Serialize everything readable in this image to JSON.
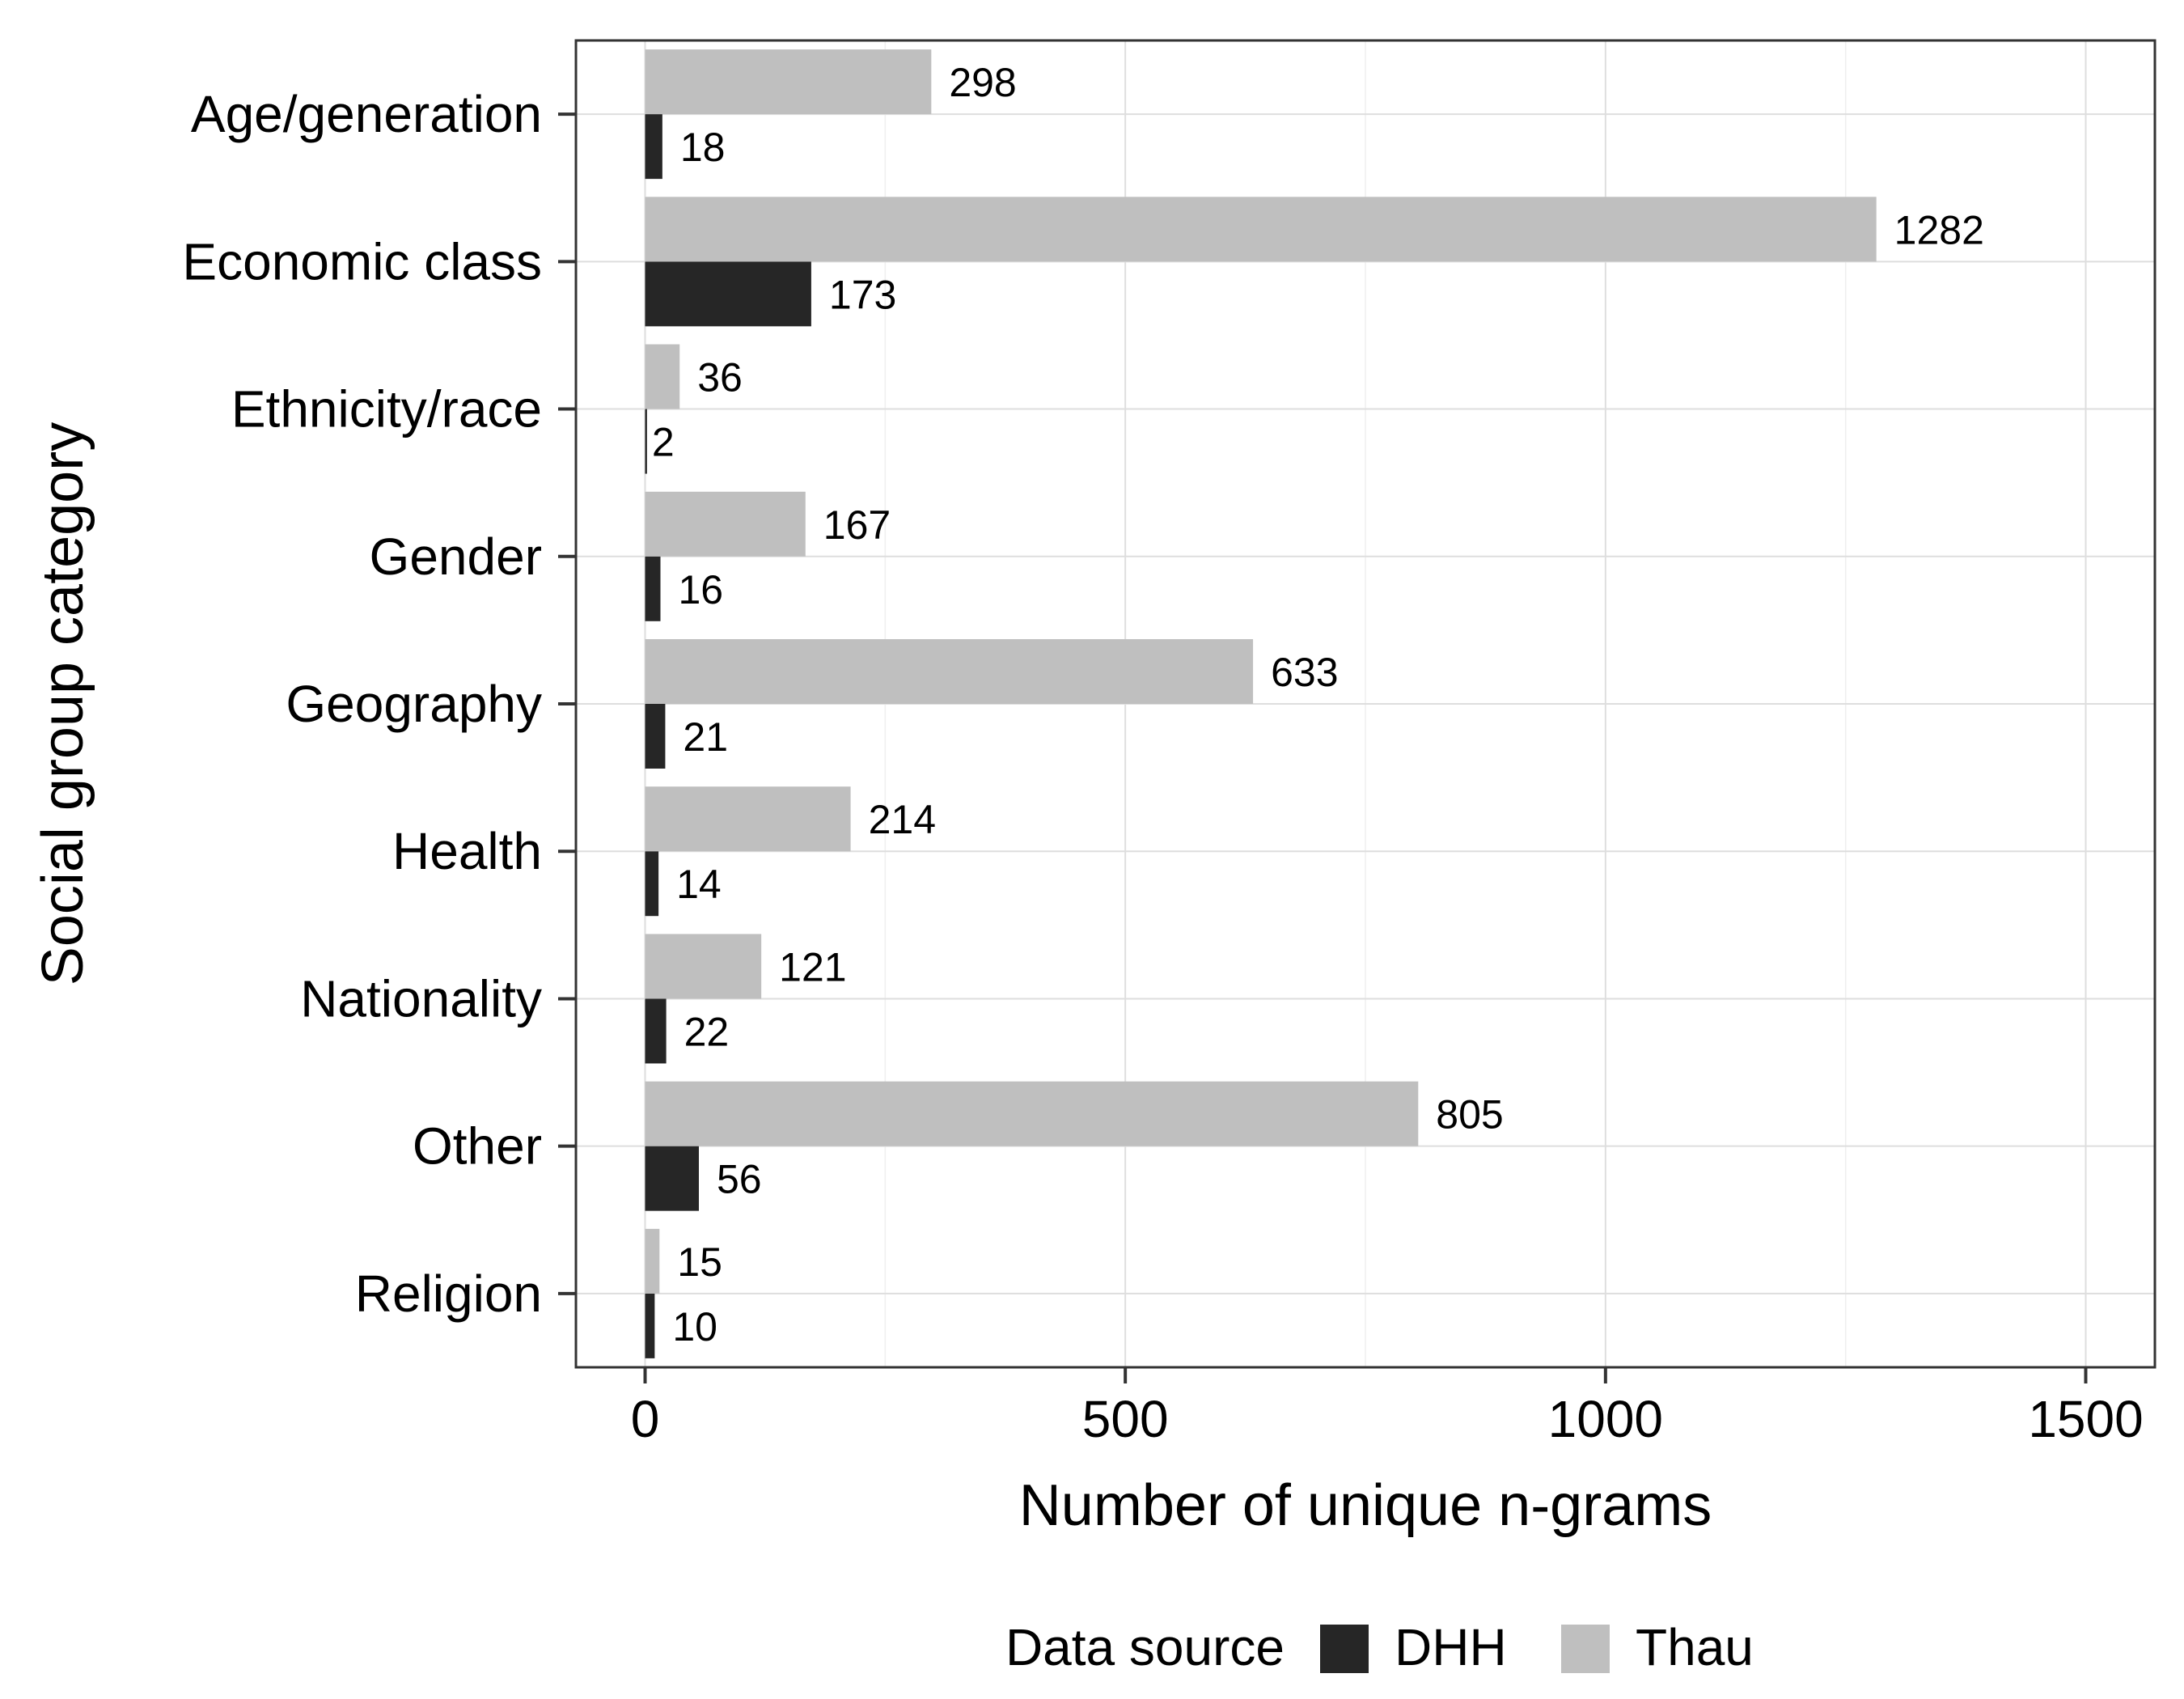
{
  "chart_data": {
    "type": "bar",
    "orientation": "horizontal",
    "xlabel": "Number of unique n-grams",
    "ylabel": "Social group category",
    "xlim": [
      -72,
      1572
    ],
    "x_ticks": [
      0,
      500,
      1000,
      1500
    ],
    "x_tick_labels": [
      "0",
      "500",
      "1000",
      "1500"
    ],
    "grid": true,
    "legend_position": "bottom",
    "legend_title": "Data source",
    "categories": [
      "Age/generation",
      "Economic class",
      "Ethnicity/race",
      "Gender",
      "Geography",
      "Health",
      "Nationality",
      "Other",
      "Religion"
    ],
    "series": [
      {
        "name": "DHH",
        "color": "#262626",
        "values": [
          18,
          173,
          2,
          16,
          21,
          14,
          22,
          56,
          10
        ]
      },
      {
        "name": "Thau",
        "color": "#bfbfbf",
        "values": [
          298,
          1282,
          36,
          167,
          633,
          214,
          121,
          805,
          15
        ]
      }
    ]
  }
}
